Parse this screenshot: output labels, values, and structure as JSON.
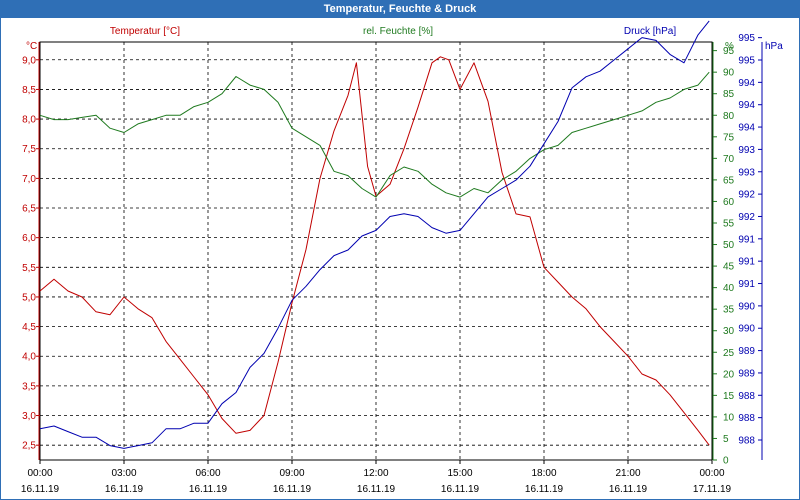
{
  "window": {
    "title": "Temperatur, Feuchte & Druck"
  },
  "colors": {
    "temp": "#c00000",
    "hum": "#1f7a1f",
    "press": "#0000b0",
    "title_bg": "#2f6fb6",
    "grid": "#000000"
  },
  "chart_data": {
    "type": "line",
    "title": "Temperatur, Feuchte & Druck",
    "grid": true,
    "x_ticks": [
      {
        "time": "00:00",
        "date": "16.11.19"
      },
      {
        "time": "03:00",
        "date": "16.11.19"
      },
      {
        "time": "06:00",
        "date": "16.11.19"
      },
      {
        "time": "09:00",
        "date": "16.11.19"
      },
      {
        "time": "12:00",
        "date": "16.11.19"
      },
      {
        "time": "15:00",
        "date": "16.11.19"
      },
      {
        "time": "18:00",
        "date": "16.11.19"
      },
      {
        "time": "21:00",
        "date": "16.11.19"
      },
      {
        "time": "00:00",
        "date": "17.11.19"
      }
    ],
    "axes": {
      "temp": {
        "label": "Temperatur [°C]",
        "unit": "°C",
        "range": [
          2.25,
          9.3
        ],
        "ticks": [
          "2,5",
          "3,0",
          "3,5",
          "4,0",
          "4,5",
          "5,0",
          "5,5",
          "6,0",
          "6,5",
          "7,0",
          "7,5",
          "8,0",
          "8,5",
          "9,0"
        ]
      },
      "hum": {
        "label": "rel. Feuchte [%]",
        "unit": "%",
        "range": [
          0,
          97
        ],
        "ticks": [
          "0",
          "5",
          "10",
          "15",
          "20",
          "25",
          "30",
          "35",
          "40",
          "45",
          "50",
          "55",
          "60",
          "65",
          "70",
          "75",
          "80",
          "85",
          "90",
          "95"
        ],
        "top_tick": "%"
      },
      "press": {
        "label": "Druck [hPa]",
        "unit": "hPa",
        "ticks": [
          "988",
          "988",
          "988",
          "989",
          "989",
          "990",
          "990",
          "991",
          "991",
          "991",
          "992",
          "992",
          "993",
          "993",
          "994",
          "994",
          "994",
          "995",
          "995"
        ]
      }
    },
    "series": [
      {
        "name": "Temperatur",
        "axis": "temp",
        "hours": [
          0,
          0.5,
          1,
          1.5,
          2,
          2.5,
          3,
          3.5,
          4,
          4.5,
          5,
          5.5,
          6,
          6.5,
          7,
          7.5,
          8,
          8.5,
          9,
          9.5,
          10,
          10.5,
          11,
          11.3,
          11.7,
          12,
          12.5,
          13,
          13.5,
          14,
          14.3,
          14.6,
          15,
          15.5,
          16,
          16.5,
          17,
          17.5,
          18,
          18.5,
          19,
          19.5,
          20,
          20.5,
          21,
          21.5,
          22,
          22.5,
          23,
          23.5,
          23.9
        ],
        "values": [
          5.1,
          5.3,
          5.1,
          5.0,
          4.75,
          4.7,
          5.0,
          4.8,
          4.65,
          4.25,
          3.95,
          3.65,
          3.35,
          2.95,
          2.7,
          2.75,
          3.0,
          3.9,
          4.9,
          5.8,
          7.0,
          7.8,
          8.4,
          8.95,
          7.2,
          6.7,
          6.9,
          7.5,
          8.2,
          8.95,
          9.05,
          9.0,
          8.5,
          8.95,
          8.3,
          7.1,
          6.4,
          6.35,
          5.5,
          5.25,
          5.0,
          4.8,
          4.5,
          4.25,
          4.0,
          3.7,
          3.6,
          3.35,
          3.05,
          2.75,
          2.5
        ]
      },
      {
        "name": "rel. Feuchte",
        "axis": "hum",
        "hours": [
          0,
          0.5,
          1,
          1.5,
          2,
          2.5,
          3,
          3.5,
          4,
          4.5,
          5,
          5.5,
          6,
          6.5,
          7,
          7.5,
          8,
          8.5,
          9,
          9.5,
          10,
          10.5,
          11,
          11.5,
          12,
          12.5,
          13,
          13.5,
          14,
          14.5,
          15,
          15.5,
          16,
          16.5,
          17,
          17.5,
          18,
          18.5,
          19,
          19.5,
          20,
          20.5,
          21,
          21.5,
          22,
          22.5,
          23,
          23.5,
          23.9
        ],
        "values": [
          80,
          79,
          79,
          79.5,
          80,
          77,
          76,
          78,
          79,
          80,
          80,
          82,
          83,
          85,
          89,
          87,
          86,
          83,
          77,
          75,
          73,
          67,
          66,
          63,
          61,
          66,
          68,
          67,
          64,
          62,
          61,
          63,
          62,
          65,
          67,
          70,
          72,
          73,
          76,
          77,
          78,
          79,
          80,
          81,
          83,
          84,
          86,
          87,
          90
        ]
      },
      {
        "name": "Druck",
        "axis": "press",
        "hours": [
          0,
          0.5,
          1,
          1.5,
          2,
          2.5,
          3,
          3.5,
          4,
          4.5,
          5,
          5.5,
          6,
          6.5,
          7,
          7.5,
          8,
          8.5,
          9,
          9.5,
          10,
          10.5,
          11,
          11.5,
          12,
          12.5,
          13,
          13.5,
          14,
          14.5,
          15,
          15.5,
          16,
          16.5,
          17,
          17.5,
          18,
          18.5,
          19,
          19.5,
          20,
          20.5,
          21,
          21.5,
          22,
          22.5,
          23,
          23.5,
          23.9
        ],
        "values": [
          988.2,
          988.25,
          988.15,
          988.05,
          988.05,
          987.9,
          987.85,
          987.9,
          987.95,
          988.2,
          988.2,
          988.3,
          988.3,
          988.65,
          988.85,
          989.3,
          989.55,
          990.0,
          990.5,
          990.75,
          991.05,
          991.3,
          991.4,
          991.65,
          991.75,
          992.0,
          992.05,
          992.0,
          991.8,
          991.7,
          991.75,
          992.05,
          992.35,
          992.5,
          992.65,
          992.9,
          993.3,
          993.7,
          994.3,
          994.5,
          994.6,
          994.8,
          995.0,
          995.2,
          995.15,
          994.9,
          994.75,
          995.25,
          995.5
        ]
      }
    ]
  }
}
